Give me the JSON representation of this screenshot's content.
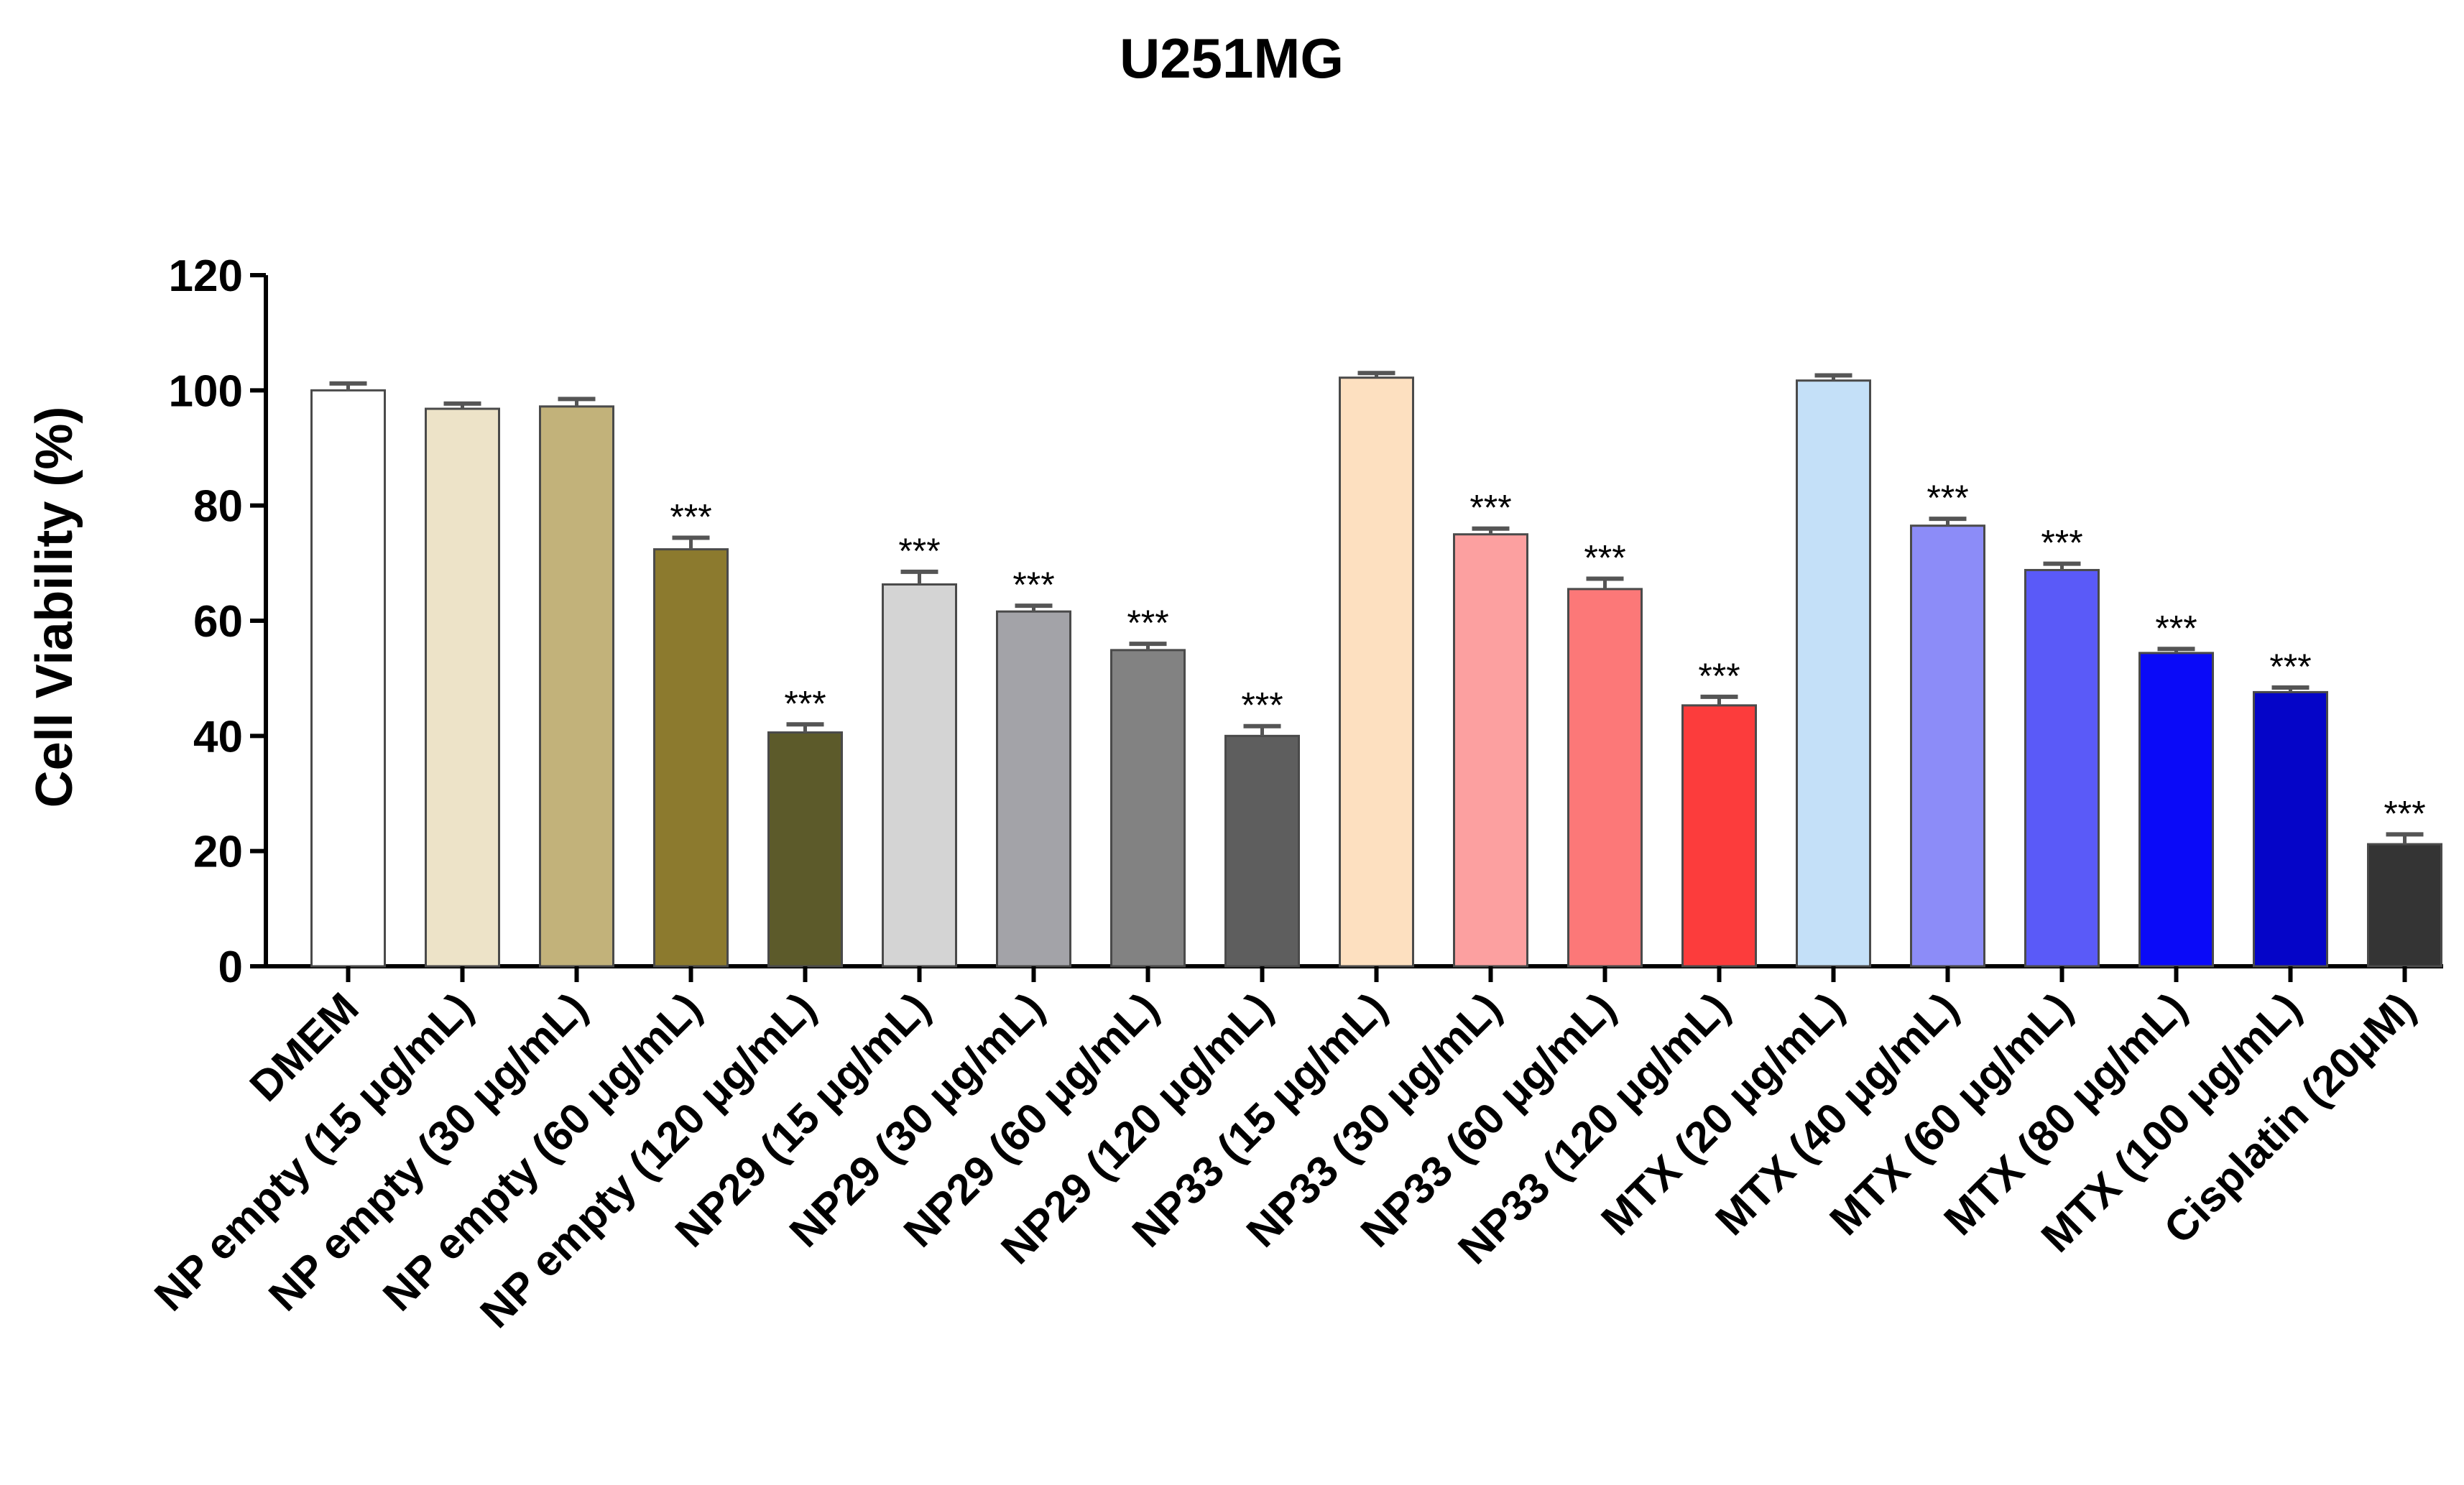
{
  "chart_data": {
    "type": "bar",
    "title": "U251MG",
    "ylabel": "Cell Viability (%)",
    "xlabel": "",
    "ylim": [
      0,
      120
    ],
    "yticks": [
      0,
      20,
      40,
      60,
      80,
      100,
      120
    ],
    "categories": [
      "DMEM",
      "NP empty (15 μg/mL)",
      "NP empty (30 μg/mL)",
      "NP empty (60 μg/mL)",
      "NP empty (120 μg/mL)",
      "NP29 (15 μg/mL)",
      "NP29 (30 μg/mL)",
      "NP29 (60 μg/mL)",
      "NP29 (120 μg/mL)",
      "NP33 (15 μg/mL)",
      "NP33 (30 μg/mL)",
      "NP33 (60 μg/mL)",
      "NP33 (120 μg/mL)",
      "MTX (20 μg/mL)",
      "MTX (40 μg/mL)",
      "MTX (60 μg/mL)",
      "MTX (80 μg/mL)",
      "MTX (100 μg/mL)",
      "Cisplatin (20μM)"
    ],
    "values": [
      100,
      96.8,
      97.2,
      72.4,
      40.6,
      66.3,
      61.6,
      54.9,
      40.0,
      102.2,
      75.0,
      65.5,
      45.3,
      101.7,
      76.5,
      68.8,
      54.4,
      47.6,
      21.2
    ],
    "errors": [
      1.2,
      0.9,
      1.3,
      2.0,
      1.4,
      2.2,
      1.0,
      1.1,
      1.7,
      0.8,
      1.0,
      1.8,
      1.5,
      0.9,
      1.2,
      1.1,
      0.7,
      0.8,
      1.7
    ],
    "significance": [
      "",
      "",
      "",
      "***",
      "***",
      "***",
      "***",
      "***",
      "***",
      "",
      "***",
      "***",
      "***",
      "",
      "***",
      "***",
      "***",
      "***",
      "***"
    ],
    "colors": [
      "#ffffff",
      "#ede3c8",
      "#c2b27a",
      "#8c7a2e",
      "#5c5a2a",
      "#d4d4d4",
      "#a3a3a8",
      "#828282",
      "#5e5e5e",
      "#fde0c0",
      "#fca0a0",
      "#fc7878",
      "#fc3c3c",
      "#c4e0f8",
      "#8c8cf8",
      "#5a5af8",
      "#0a0af8",
      "#0505c8",
      "#343434"
    ],
    "grid": false,
    "legend": "none"
  }
}
